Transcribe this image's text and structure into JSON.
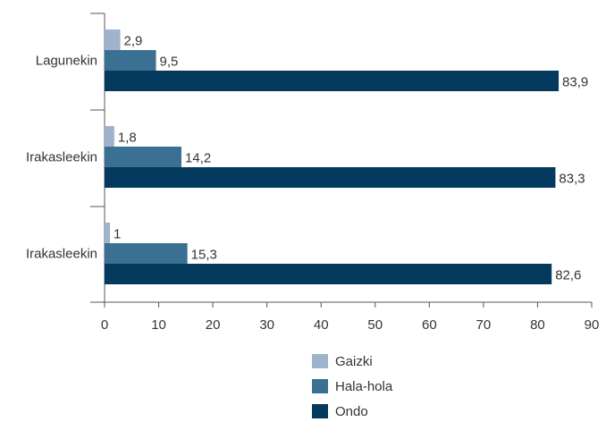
{
  "chart_data": {
    "type": "bar",
    "orientation": "horizontal",
    "categories": [
      "Lagunekin",
      "Irakasleekin",
      "Irakasleekin"
    ],
    "series": [
      {
        "name": "Gaizki",
        "color": "#9fb3cc",
        "values": [
          2.9,
          1.8,
          1
        ]
      },
      {
        "name": "Hala-hola",
        "color": "#3a7193",
        "values": [
          9.5,
          14.2,
          15.3
        ]
      },
      {
        "name": "Ondo",
        "color": "#033a5e",
        "values": [
          83.9,
          83.3,
          82.6
        ]
      }
    ],
    "data_labels": [
      [
        "2,9",
        "9,5",
        "83,9"
      ],
      [
        "1,8",
        "14,2",
        "83,3"
      ],
      [
        "1",
        "15,3",
        "82,6"
      ]
    ],
    "xlim": [
      0,
      90
    ],
    "xticks": [
      0,
      10,
      20,
      30,
      40,
      50,
      60,
      70,
      80,
      90
    ],
    "grid": false,
    "legend_position": "bottom-center",
    "title": "",
    "xlabel": "",
    "ylabel": ""
  }
}
